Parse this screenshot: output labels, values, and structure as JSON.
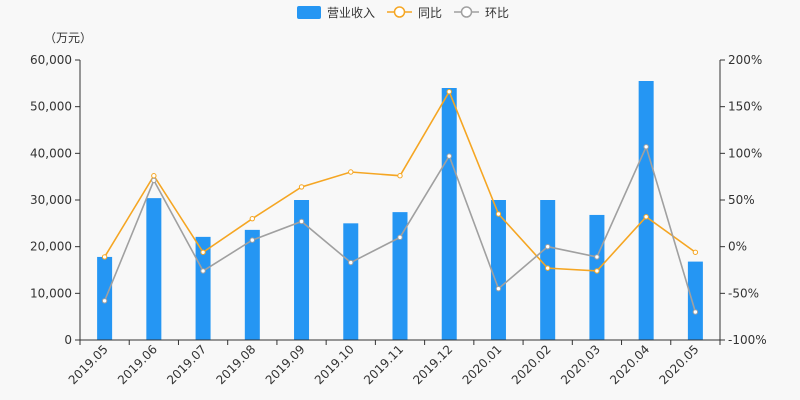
{
  "chart_data": {
    "type": "bar",
    "unit_label": "（万元）",
    "categories": [
      "2019.05",
      "2019.06",
      "2019.07",
      "2019.08",
      "2019.09",
      "2019.10",
      "2019.11",
      "2019.12",
      "2020.01",
      "2020.02",
      "2020.03",
      "2020.04",
      "2020.05"
    ],
    "series": [
      {
        "name": "营业收入",
        "type": "bar",
        "axis": "left",
        "color": "#2596f3",
        "values": [
          17800,
          30400,
          22100,
          23600,
          30000,
          25000,
          27400,
          54000,
          30000,
          30000,
          26800,
          55500,
          16800
        ]
      },
      {
        "name": "同比",
        "type": "line",
        "axis": "right",
        "color": "#f5a623",
        "values": [
          -11,
          76,
          -6,
          30,
          64,
          80,
          76,
          166,
          35,
          -23,
          -26,
          32,
          -6
        ]
      },
      {
        "name": "环比",
        "type": "line",
        "axis": "right",
        "color": "#a0a0a0",
        "values": [
          -58,
          71,
          -26,
          7,
          27,
          -17,
          10,
          97,
          -45,
          0,
          -11,
          107,
          -70
        ]
      }
    ],
    "y_left": {
      "min": 0,
      "max": 60000,
      "ticks": [
        "0",
        "10,000",
        "20,000",
        "30,000",
        "40,000",
        "50,000",
        "60,000"
      ]
    },
    "y_right": {
      "min": -100,
      "max": 200,
      "ticks": [
        "-100%",
        "-50%",
        "0%",
        "50%",
        "100%",
        "150%",
        "200%"
      ]
    },
    "legend": "top-center",
    "grid": false
  }
}
